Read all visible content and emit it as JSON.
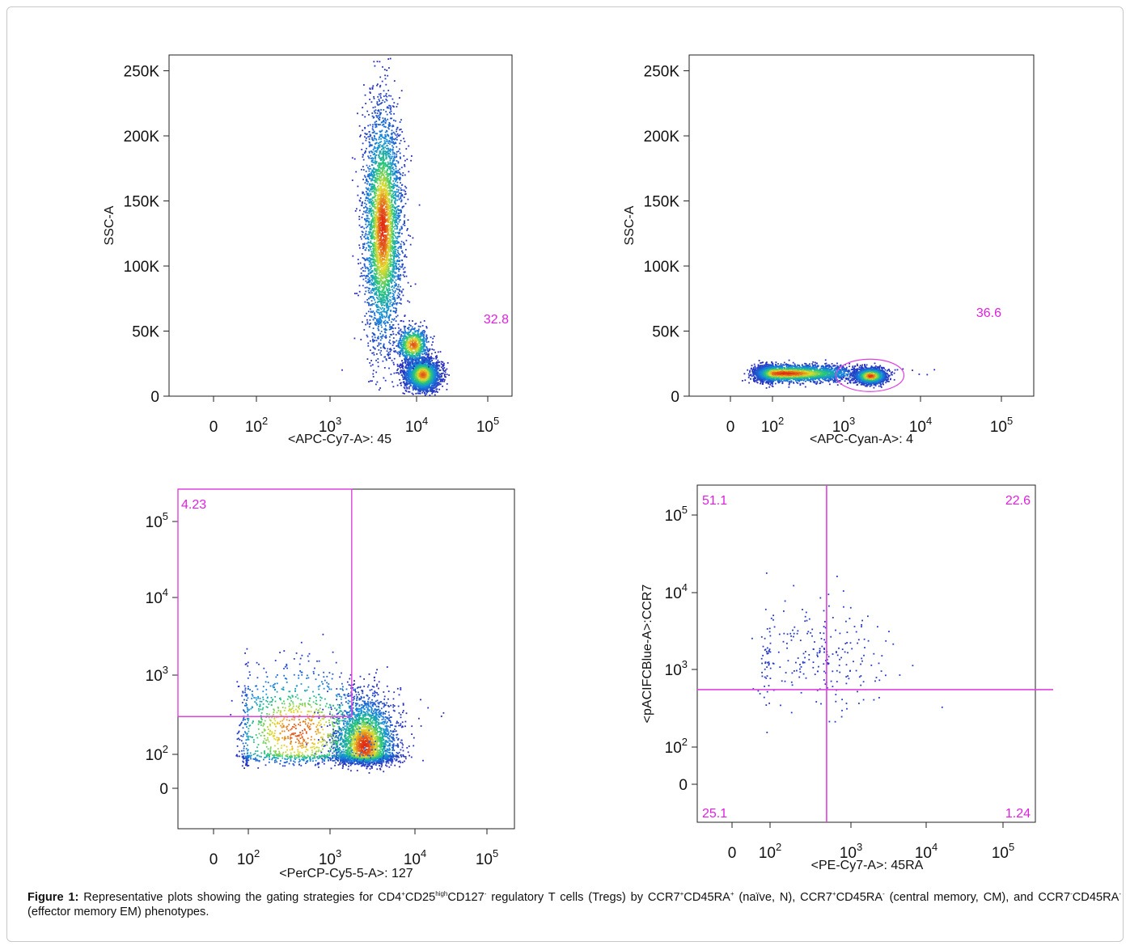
{
  "figure": {
    "caption": {
      "label": "Figure 1:",
      "parts": [
        {
          "t": " Representative plots showing the gating strategies for CD4"
        },
        {
          "t": "+",
          "sup": true
        },
        {
          "t": "CD25"
        },
        {
          "t": "high",
          "sup": true
        },
        {
          "t": "CD127"
        },
        {
          "t": "-",
          "sup": true
        },
        {
          "t": " regulatory T cells (Tregs) by CCR7"
        },
        {
          "t": "+",
          "sup": true
        },
        {
          "t": "CD45RA"
        },
        {
          "t": "+",
          "sup": true
        },
        {
          "t": " (naïve, N), CCR7"
        },
        {
          "t": "+",
          "sup": true
        },
        {
          "t": "CD45RA"
        },
        {
          "t": "-",
          "sup": true
        },
        {
          "t": " (central memory, CM), and CCR7"
        },
        {
          "t": "-",
          "sup": true
        },
        {
          "t": "CD45RA"
        },
        {
          "t": "-",
          "sup": true
        },
        {
          "t": " (effector memory EM) phenotypes."
        }
      ]
    },
    "colors": {
      "gate": "#e040e0",
      "gate_text": "#e020e0",
      "density_low": "#1a1aa8",
      "density_high": "#e03010",
      "frame": "#c8c8c8"
    }
  },
  "chart_data": [
    {
      "id": "plot-a",
      "type": "scatter",
      "xscale": "biexponential",
      "yscale": "linear",
      "xlabel": "<APC-Cy7-A>: 45",
      "ylabel": "SSC-A",
      "x_ticks": [
        {
          "v": 0,
          "label": "0"
        },
        {
          "v": 100,
          "label": "10",
          "exp": "2"
        },
        {
          "v": 1000,
          "label": "10",
          "exp": "3"
        },
        {
          "v": 10000,
          "label": "10",
          "exp": "4"
        },
        {
          "v": 100000,
          "label": "10",
          "exp": "5"
        }
      ],
      "y_ticks": [
        {
          "v": 0,
          "label": "0"
        },
        {
          "v": 50000,
          "label": "50K"
        },
        {
          "v": 100000,
          "label": "100K"
        },
        {
          "v": 150000,
          "label": "150K"
        },
        {
          "v": 200000,
          "label": "200K"
        },
        {
          "v": 250000,
          "label": "250K"
        }
      ],
      "ylim": [
        0,
        262144
      ],
      "gate_stats": [
        {
          "value": "32.8"
        }
      ],
      "populations": [
        {
          "x": 4000,
          "y": 130000,
          "sx": 0.11,
          "sy": 45000,
          "n": 3800
        },
        {
          "x": 12000,
          "y": 17000,
          "sx": 0.11,
          "sy": 6000,
          "n": 2600
        },
        {
          "x": 9000,
          "y": 40000,
          "sx": 0.1,
          "sy": 7000,
          "n": 700
        }
      ]
    },
    {
      "id": "plot-b",
      "type": "scatter",
      "xscale": "biexponential",
      "yscale": "linear",
      "xlabel": "<APC-Cyan-A>: 4",
      "ylabel": "SSC-A",
      "x_ticks": [
        {
          "v": 0,
          "label": "0"
        },
        {
          "v": 100,
          "label": "10",
          "exp": "2"
        },
        {
          "v": 1000,
          "label": "10",
          "exp": "3"
        },
        {
          "v": 10000,
          "label": "10",
          "exp": "4"
        },
        {
          "v": 100000,
          "label": "10",
          "exp": "5"
        }
      ],
      "y_ticks": [
        {
          "v": 0,
          "label": "0"
        },
        {
          "v": 50000,
          "label": "50K"
        },
        {
          "v": 100000,
          "label": "100K"
        },
        {
          "v": 150000,
          "label": "150K"
        },
        {
          "v": 200000,
          "label": "200K"
        },
        {
          "v": 250000,
          "label": "250K"
        }
      ],
      "ylim": [
        0,
        262144
      ],
      "gate_stats": [
        {
          "value": "36.6"
        }
      ],
      "populations": [
        {
          "x": 150,
          "y": 18000,
          "sx": 0.5,
          "sy": 3200,
          "n": 3200
        },
        {
          "x": 2200,
          "y": 16000,
          "sx": 0.1,
          "sy": 3000,
          "n": 1500
        }
      ]
    },
    {
      "id": "plot-c",
      "type": "scatter",
      "xscale": "biexponential",
      "yscale": "biexponential",
      "xlabel": "<PerCP-Cy5-5-A>: 127",
      "ylabel": "",
      "x_ticks": [
        {
          "v": 0,
          "label": "0"
        },
        {
          "v": 100,
          "label": "10",
          "exp": "2"
        },
        {
          "v": 1000,
          "label": "10",
          "exp": "3"
        },
        {
          "v": 10000,
          "label": "10",
          "exp": "4"
        },
        {
          "v": 100000,
          "label": "10",
          "exp": "5"
        }
      ],
      "y_ticks": [
        {
          "v": 0,
          "label": "0"
        },
        {
          "v": 100,
          "label": "10",
          "exp": "2"
        },
        {
          "v": 1000,
          "label": "10",
          "exp": "3"
        },
        {
          "v": 10000,
          "label": "10",
          "exp": "4"
        },
        {
          "v": 100000,
          "label": "10",
          "exp": "5"
        }
      ],
      "gate_stats": [
        {
          "value": "4.23"
        }
      ],
      "populations": [
        {
          "x": 2500,
          "y": 130,
          "sx": 0.18,
          "sy": 0.3,
          "n": 3000
        },
        {
          "x": 400,
          "y": 200,
          "sx": 0.5,
          "sy": 0.4,
          "n": 1200
        }
      ]
    },
    {
      "id": "plot-d",
      "type": "scatter",
      "xscale": "biexponential",
      "yscale": "biexponential",
      "xlabel": "<PE-Cy7-A>: 45RA",
      "ylabel": "<pACIFCBlue-A>:CCR7",
      "x_ticks": [
        {
          "v": 0,
          "label": "0"
        },
        {
          "v": 100,
          "label": "10",
          "exp": "2"
        },
        {
          "v": 1000,
          "label": "10",
          "exp": "3"
        },
        {
          "v": 10000,
          "label": "10",
          "exp": "4"
        },
        {
          "v": 100000,
          "label": "10",
          "exp": "5"
        }
      ],
      "y_ticks": [
        {
          "v": 0,
          "label": "0"
        },
        {
          "v": 100,
          "label": "10",
          "exp": "2"
        },
        {
          "v": 1000,
          "label": "10",
          "exp": "3"
        },
        {
          "v": 10000,
          "label": "10",
          "exp": "4"
        },
        {
          "v": 100000,
          "label": "10",
          "exp": "5"
        }
      ],
      "quadrants": [
        {
          "pos": "top-left",
          "value": "51.1"
        },
        {
          "pos": "top-right",
          "value": "22.6"
        },
        {
          "pos": "bottom-left",
          "value": "25.1"
        },
        {
          "pos": "bottom-right",
          "value": "1.24"
        }
      ],
      "populations": [
        {
          "x": 300,
          "y": 1500,
          "sx": 0.5,
          "sy": 0.35,
          "n": 260
        }
      ]
    }
  ]
}
